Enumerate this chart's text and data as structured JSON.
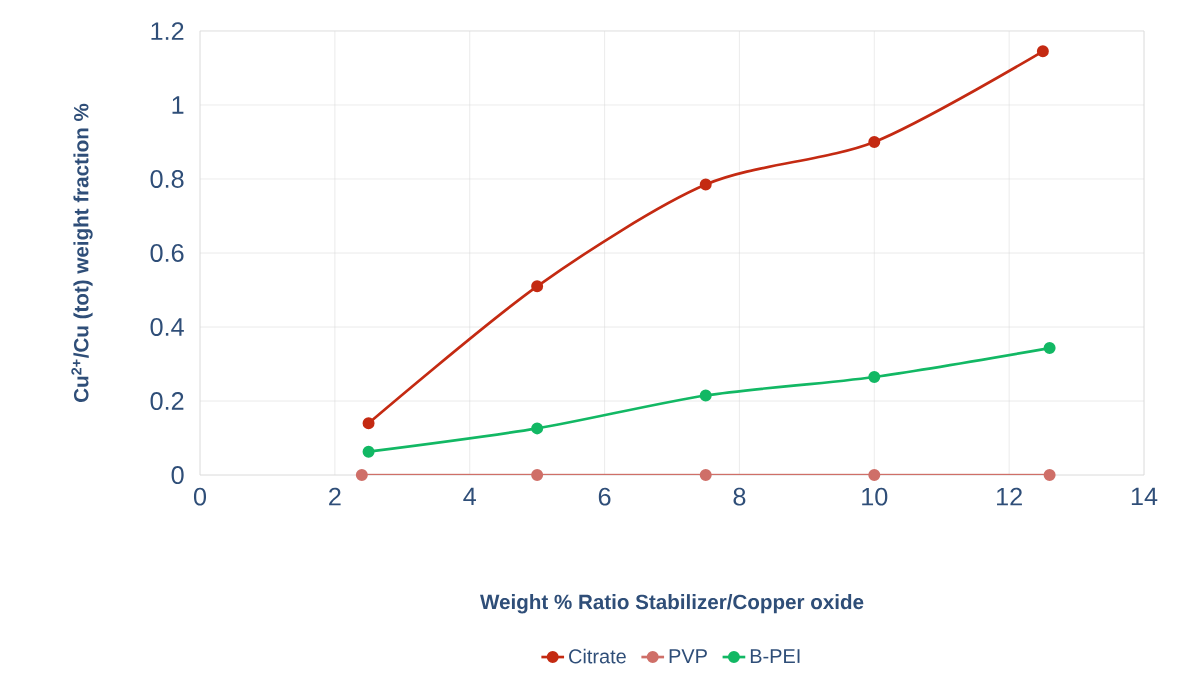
{
  "chart_data": {
    "type": "line",
    "xlabel": "Weight % Ratio Stabilizer/Copper oxide",
    "ylabel": "Cu$^{2+}$/Cu (tot) weight fraction %",
    "series": [
      {
        "name": "Citrate",
        "color": "#c42a12",
        "x": [
          2.5,
          5,
          7.5,
          10,
          12.5
        ],
        "values": [
          0.14,
          0.51,
          0.785,
          0.9,
          1.145
        ]
      },
      {
        "name": "PVP",
        "color": "#cf6f68",
        "x": [
          2.4,
          5,
          7.5,
          10,
          12.6
        ],
        "values": [
          0,
          0,
          0,
          0,
          0
        ]
      },
      {
        "name": "B-PEI",
        "color": "#12b864",
        "x": [
          2.5,
          5,
          7.5,
          10,
          12.6
        ],
        "values": [
          0.063,
          0.126,
          0.215,
          0.265,
          0.343
        ]
      }
    ],
    "xlim": [
      0,
      14
    ],
    "ylim": [
      0,
      1.2
    ],
    "xticks": [
      0,
      2,
      4,
      6,
      8,
      10,
      12,
      14
    ],
    "yticks": [
      0,
      0.2,
      0.4,
      0.6,
      0.8,
      1,
      1.2
    ],
    "grid": true,
    "legend": "bottom",
    "marker": "circle",
    "line_style": "solid"
  }
}
